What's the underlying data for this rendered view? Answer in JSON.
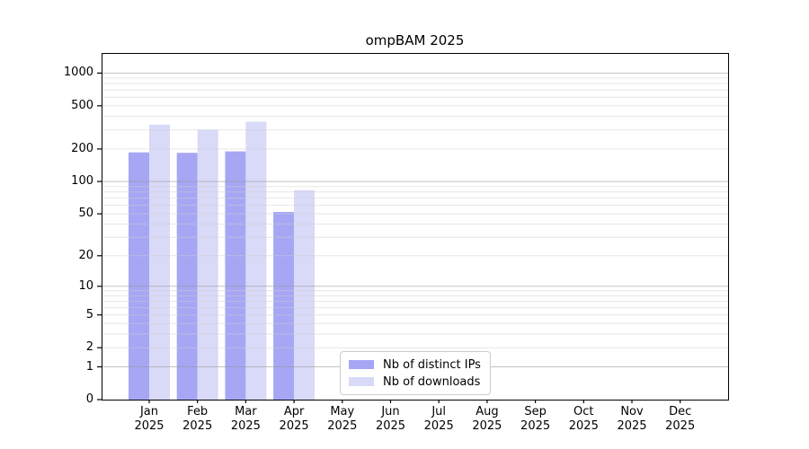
{
  "chart_data": {
    "type": "bar",
    "title": "ompBAM 2025",
    "categories": [
      "Jan",
      "Feb",
      "Mar",
      "Apr",
      "May",
      "Jun",
      "Jul",
      "Aug",
      "Sep",
      "Oct",
      "Nov",
      "Dec"
    ],
    "year_label": "2025",
    "series": [
      {
        "name": "Nb of distinct IPs",
        "color": "#a6a6f4",
        "values": [
          186,
          184,
          190,
          52,
          null,
          null,
          null,
          null,
          null,
          null,
          null,
          null
        ]
      },
      {
        "name": "Nb of downloads",
        "color": "#d9d9f8",
        "values": [
          335,
          300,
          357,
          83,
          null,
          null,
          null,
          null,
          null,
          null,
          null,
          null
        ]
      }
    ],
    "yscale": "log1p",
    "ylim": [
      0,
      1530
    ],
    "y_ticks": [
      0,
      1,
      2,
      5,
      10,
      20,
      50,
      100,
      200,
      500,
      1000
    ],
    "grid": "horizontal",
    "legend_position": "inside-lower-center"
  },
  "colors": {
    "axis": "#000000",
    "major_grid": "#9a9a9a",
    "minor_grid": "#cfcfcf",
    "legend_border": "#cccccc",
    "legend_bg": "#ffffff",
    "background": "#ffffff"
  }
}
